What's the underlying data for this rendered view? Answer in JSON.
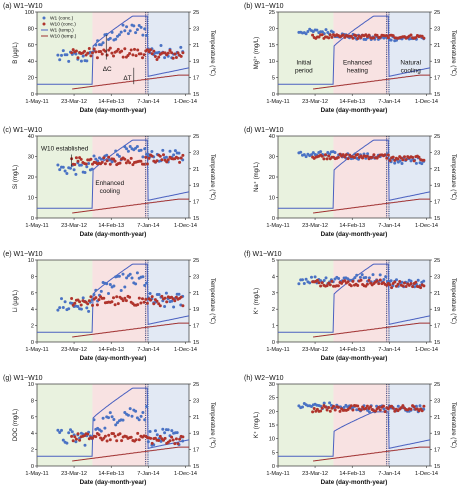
{
  "colors": {
    "w1_conc": "#4A72C4",
    "w10_conc": "#B0342C",
    "w1_temp": "#4A60C0",
    "w10_temp": "#A03030",
    "period_initial": "#E9F2DF",
    "period_heating": "#F8E2E2",
    "period_cooling": "#E2E9F4"
  },
  "x_ticks": [
    "1-May-11",
    "23-Mar-12",
    "14-Feb-13",
    "7-Jan-14",
    "1-Dec-14"
  ],
  "x_axis_label": "Date (day-month-year)",
  "right_axis_label": "Temperature (℃)",
  "legend": [
    "W1 (conc.)",
    "W10 (conc.)",
    "W1 (temp.)",
    "W10 (temp.)"
  ],
  "period_labels": {
    "initial": "Initial\nperiod",
    "heating": "Enhanced\nheating",
    "cooling": "Natural\ncooling",
    "enhanced_cooling": "Enhanced\ncooling",
    "w10_established": "W10 established"
  },
  "delta_labels": {
    "dc": "ΔC",
    "dt": "ΔT"
  },
  "chart_data": [
    {
      "type": "scatter",
      "panel": "a",
      "title": "(a) W1−W10",
      "ylabel": "B (µg/L)",
      "ylim": [
        0,
        100
      ],
      "yticks": [
        0,
        20,
        40,
        60,
        80,
        100
      ],
      "y2label": "Temperature (℃)",
      "y2lim": [
        15,
        25
      ],
      "y2ticks": [
        15,
        17,
        19,
        21,
        23,
        25
      ],
      "x_range": [
        "2011-05-01",
        "2015-01-01"
      ],
      "series": [
        {
          "name": "W1 (conc.)",
          "level_before": 45,
          "level_heating": 78,
          "level_after": 52,
          "noise": 8
        },
        {
          "name": "W10 (conc.)",
          "level_before": null,
          "level_heating": 50,
          "level_after": 48,
          "noise": 6
        },
        {
          "name": "W1 (temp.)",
          "temp_before": 16.2,
          "temp_peak": 24.5,
          "temp_after": 17.5
        },
        {
          "name": "W10 (temp.)",
          "temp_before": 15.6,
          "temp_peak": 17.3,
          "temp_after": 17.0
        }
      ]
    },
    {
      "type": "scatter",
      "panel": "b",
      "title": "(b) W1−W10",
      "ylabel": "Mg²⁺ (mg/L)",
      "ylim": [
        0,
        25
      ],
      "yticks": [
        0,
        5,
        10,
        15,
        20,
        25
      ],
      "y2label": "Temperature (℃)",
      "y2lim": [
        15,
        25
      ],
      "y2ticks": [
        15,
        17,
        19,
        21,
        23,
        25
      ],
      "series": [
        {
          "name": "W1 (conc.)",
          "level_before": 19,
          "level_heating": 17,
          "level_after": 17,
          "noise": 0.8
        },
        {
          "name": "W10 (conc.)",
          "level_before": null,
          "level_heating": 17.5,
          "level_after": 17.5,
          "noise": 0.6
        },
        {
          "name": "W1 (temp.)",
          "temp_before": 16.2,
          "temp_peak": 24.5,
          "temp_after": 17.5
        },
        {
          "name": "W10 (temp.)",
          "temp_before": 15.6,
          "temp_peak": 17.3,
          "temp_after": 17.0
        }
      ]
    },
    {
      "type": "scatter",
      "panel": "c",
      "title": "(c) W1−W10",
      "ylabel": "Si (mg/L)",
      "ylim": [
        0,
        40
      ],
      "yticks": [
        0,
        10,
        20,
        30,
        40
      ],
      "y2label": "Temperature (℃)",
      "y2lim": [
        15,
        25
      ],
      "y2ticks": [
        15,
        17,
        19,
        21,
        23,
        25
      ],
      "series": [
        {
          "name": "W1 (conc.)",
          "level_before": 24,
          "level_heating": 32,
          "level_after": 30,
          "noise": 3
        },
        {
          "name": "W10 (conc.)",
          "level_before": null,
          "level_heating": 28,
          "level_after": 29,
          "noise": 2
        },
        {
          "name": "W1 (temp.)",
          "temp_before": 16.2,
          "temp_peak": 24.5,
          "temp_after": 17.5
        },
        {
          "name": "W10 (temp.)",
          "temp_before": 15.6,
          "temp_peak": 17.3,
          "temp_after": 17.0
        }
      ]
    },
    {
      "type": "scatter",
      "panel": "d",
      "title": "(d) W1−W10",
      "ylabel": "Na⁺ (mg/L)",
      "ylim": [
        0,
        40
      ],
      "yticks": [
        0,
        10,
        20,
        30,
        40
      ],
      "y2label": "Temperature (℃)",
      "y2lim": [
        15,
        25
      ],
      "y2ticks": [
        15,
        17,
        19,
        21,
        23,
        25
      ],
      "series": [
        {
          "name": "W1 (conc.)",
          "level_before": 31,
          "level_heating": 30,
          "level_after": 28,
          "noise": 1.5
        },
        {
          "name": "W10 (conc.)",
          "level_before": null,
          "level_heating": 30,
          "level_after": 29,
          "noise": 1.2
        },
        {
          "name": "W1 (temp.)",
          "temp_before": 16.2,
          "temp_peak": 24.5,
          "temp_after": 17.5
        },
        {
          "name": "W10 (temp.)",
          "temp_before": 15.6,
          "temp_peak": 17.3,
          "temp_after": 17.0
        }
      ]
    },
    {
      "type": "scatter",
      "panel": "e",
      "title": "(e) W1−W10",
      "ylabel": "Li (µg/L)",
      "ylim": [
        0,
        10
      ],
      "yticks": [
        0,
        2,
        4,
        6,
        8,
        10
      ],
      "y2label": "Temperature (℃)",
      "y2lim": [
        15,
        25
      ],
      "y2ticks": [
        15,
        17,
        19,
        21,
        23,
        25
      ],
      "series": [
        {
          "name": "W1 (conc.)",
          "level_before": 4.5,
          "level_heating": 7.5,
          "level_after": 5,
          "noise": 1.0
        },
        {
          "name": "W10 (conc.)",
          "level_before": null,
          "level_heating": 5,
          "level_after": 5,
          "noise": 0.6
        },
        {
          "name": "W1 (temp.)",
          "temp_before": 16.2,
          "temp_peak": 24.5,
          "temp_after": 17.5
        },
        {
          "name": "W10 (temp.)",
          "temp_before": 15.6,
          "temp_peak": 17.3,
          "temp_after": 17.0
        }
      ]
    },
    {
      "type": "scatter",
      "panel": "f",
      "title": "(f) W1−W10",
      "ylabel": "K⁺ (mg/L)",
      "ylim": [
        0,
        5
      ],
      "yticks": [
        0,
        1,
        2,
        3,
        4,
        5
      ],
      "y2label": "Temperature (℃)",
      "y2lim": [
        15,
        25
      ],
      "y2ticks": [
        15,
        17,
        19,
        21,
        23,
        25
      ],
      "series": [
        {
          "name": "W1 (conc.)",
          "level_before": 3.8,
          "level_heating": 3.9,
          "level_after": 3.6,
          "noise": 0.25
        },
        {
          "name": "W10 (conc.)",
          "level_before": null,
          "level_heating": 3.6,
          "level_after": 3.5,
          "noise": 0.2
        },
        {
          "name": "W1 (temp.)",
          "temp_before": 16.2,
          "temp_peak": 24.5,
          "temp_after": 17.5
        },
        {
          "name": "W10 (temp.)",
          "temp_before": 15.6,
          "temp_peak": 17.3,
          "temp_after": 17.0
        }
      ]
    },
    {
      "type": "scatter",
      "panel": "g",
      "title": "(g) W1−W10",
      "ylabel": "DOC (mg/L)",
      "ylim": [
        0,
        10
      ],
      "yticks": [
        0,
        2,
        4,
        6,
        8,
        10
      ],
      "y2label": "Temperature (℃)",
      "y2lim": [
        15,
        25
      ],
      "y2ticks": [
        15,
        17,
        19,
        21,
        23,
        25
      ],
      "series": [
        {
          "name": "W1 (conc.)",
          "level_before": 3.5,
          "level_heating": 6.5,
          "level_after": 3.5,
          "noise": 1.0
        },
        {
          "name": "W10 (conc.)",
          "level_before": null,
          "level_heating": 3.5,
          "level_after": 3.2,
          "noise": 0.5
        },
        {
          "name": "W1 (temp.)",
          "temp_before": 16.2,
          "temp_peak": 24.5,
          "temp_after": 17.5
        },
        {
          "name": "W10 (temp.)",
          "temp_before": 15.6,
          "temp_peak": 17.3,
          "temp_after": 17.0
        }
      ]
    },
    {
      "type": "scatter",
      "panel": "h",
      "title": "(h) W2−W10",
      "ylabel": "K⁺ (mg/L)",
      "ylim": [
        0,
        30
      ],
      "yticks": [
        0,
        5,
        10,
        15,
        20,
        25,
        30
      ],
      "y2label": "Temperature (℃)",
      "y2lim": [
        15,
        25
      ],
      "y2ticks": [
        15,
        17,
        19,
        21,
        23,
        25
      ],
      "series": [
        {
          "name": "W1 (conc.)",
          "level_before": 22,
          "level_heating": 21,
          "level_after": 21,
          "noise": 1.2
        },
        {
          "name": "W10 (conc.)",
          "level_before": null,
          "level_heating": 21,
          "level_after": 21,
          "noise": 1.2
        },
        {
          "name": "W1 (temp.)",
          "temp_before": 16.2,
          "temp_peak": 21.6,
          "temp_after": 17.5
        },
        {
          "name": "W10 (temp.)",
          "temp_before": 15.6,
          "temp_peak": 17.3,
          "temp_after": 17.0
        }
      ]
    }
  ]
}
